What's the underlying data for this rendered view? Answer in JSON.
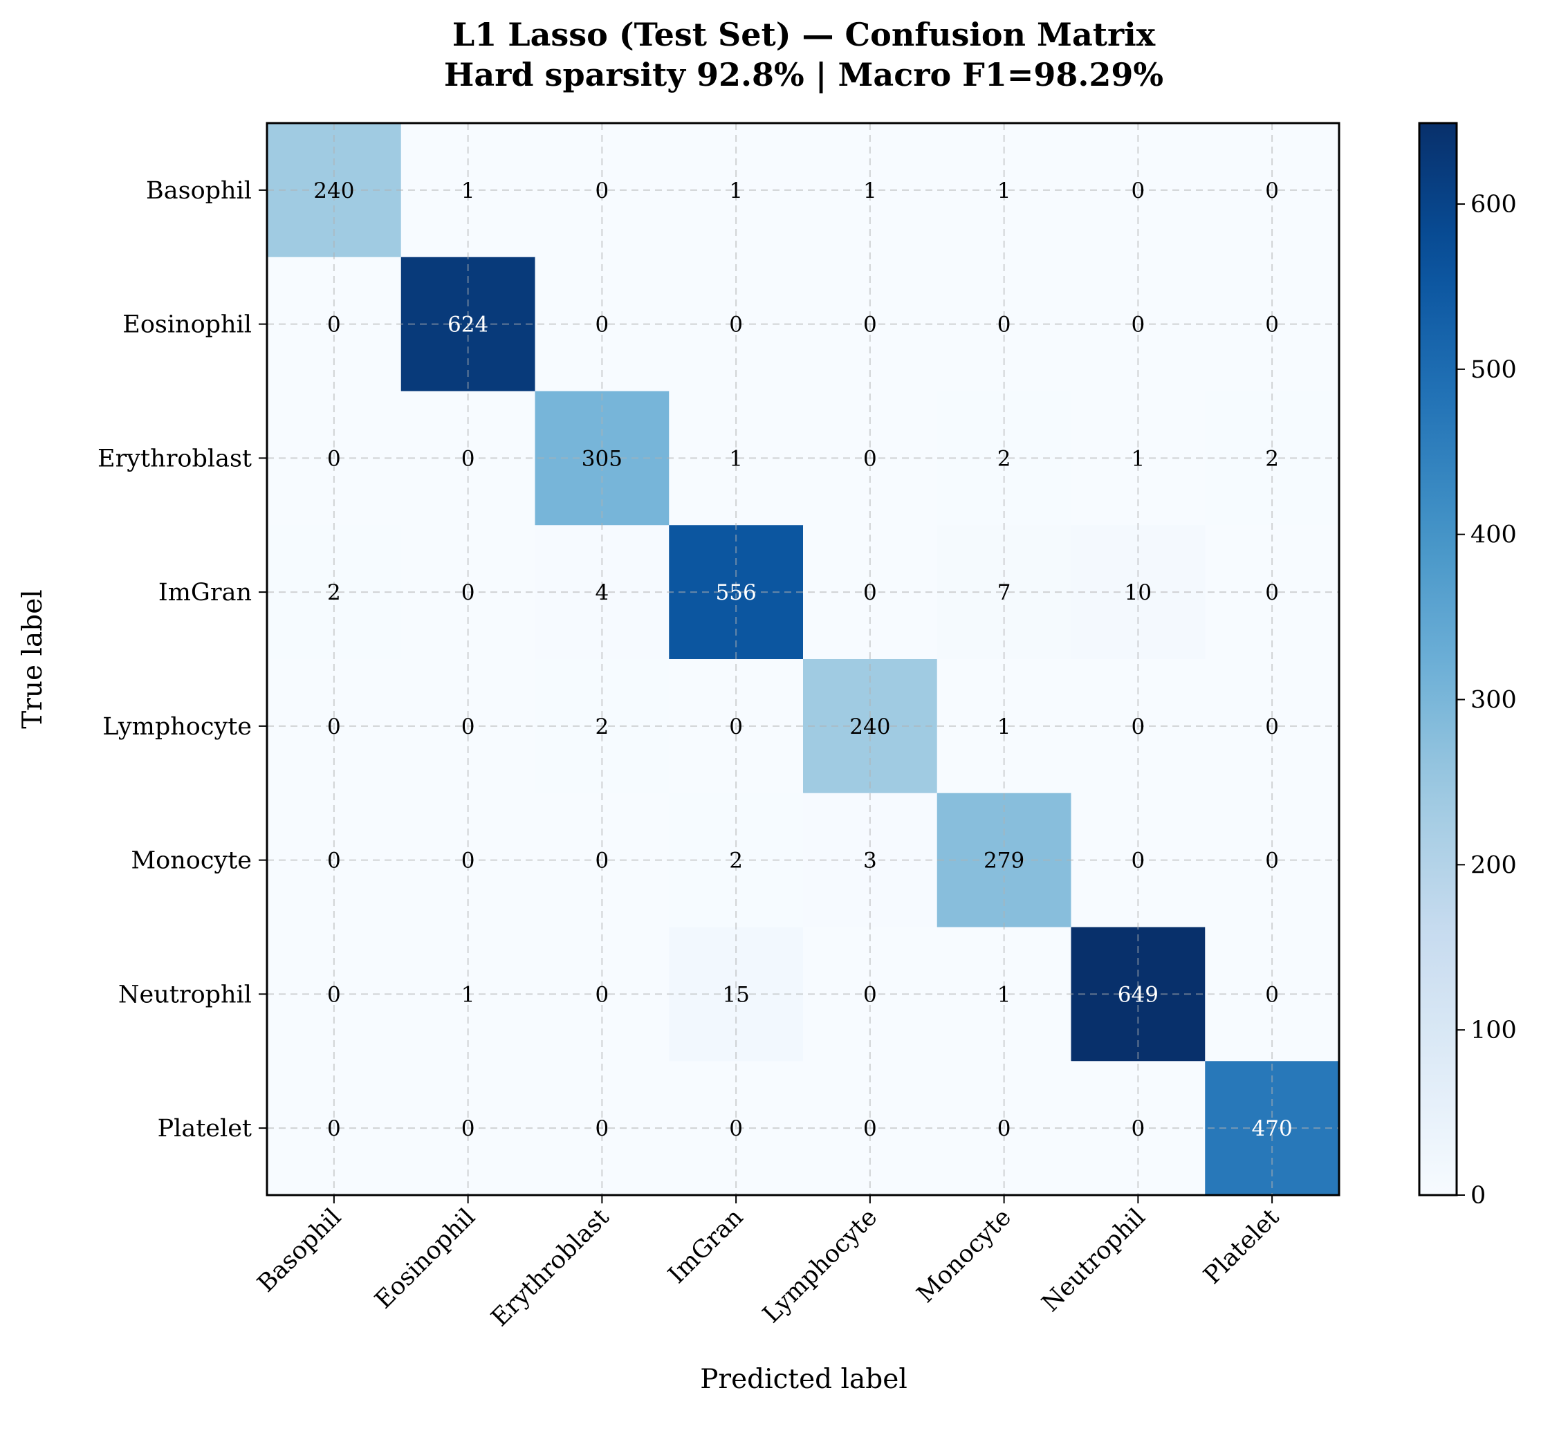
{
  "chart_data": {
    "type": "heatmap",
    "title": "L1 Lasso (Test Set) — Confusion Matrix",
    "subtitle": "Hard sparsity 92.8%  |  Macro F1=98.29%",
    "xlabel": "Predicted label",
    "ylabel": "True label",
    "x_categories": [
      "Basophil",
      "Eosinophil",
      "Erythroblast",
      "ImGran",
      "Lymphocyte",
      "Monocyte",
      "Neutrophil",
      "Platelet"
    ],
    "y_categories": [
      "Basophil",
      "Eosinophil",
      "Erythroblast",
      "ImGran",
      "Lymphocyte",
      "Monocyte",
      "Neutrophil",
      "Platelet"
    ],
    "matrix": [
      [
        240,
        1,
        0,
        1,
        1,
        1,
        0,
        0
      ],
      [
        0,
        624,
        0,
        0,
        0,
        0,
        0,
        0
      ],
      [
        0,
        0,
        305,
        1,
        0,
        2,
        1,
        2
      ],
      [
        2,
        0,
        4,
        556,
        0,
        7,
        10,
        0
      ],
      [
        0,
        0,
        2,
        0,
        240,
        1,
        0,
        0
      ],
      [
        0,
        0,
        0,
        2,
        3,
        279,
        0,
        0
      ],
      [
        0,
        1,
        0,
        15,
        0,
        1,
        649,
        0
      ],
      [
        0,
        0,
        0,
        0,
        0,
        0,
        0,
        470
      ]
    ],
    "colormap": "Blues",
    "colorbar": {
      "min": 0,
      "max": 649,
      "ticks": [
        0,
        100,
        200,
        300,
        400,
        500,
        600
      ]
    },
    "grid": true,
    "grid_style": "dashed"
  }
}
